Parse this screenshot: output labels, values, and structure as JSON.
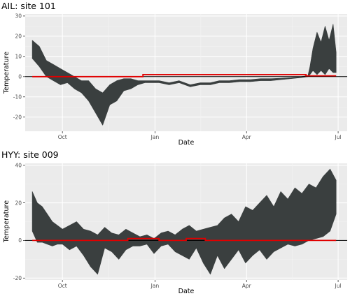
{
  "colors": {
    "panel_bg": "#ebebeb",
    "grid_major": "#ffffff",
    "grid_minor": "#f3f3f3",
    "band": "#3a3f3f",
    "threshold": "#e00000",
    "zero_line": "#000000"
  },
  "chart_data": [
    {
      "type": "area",
      "title": "AIL: site 101",
      "xlabel": "Date",
      "ylabel": "Temperature",
      "x_ticks": [
        "Oct",
        "Jan",
        "Apr",
        "Jul"
      ],
      "y_ticks": [
        -20,
        -10,
        0,
        10,
        20,
        30
      ],
      "xlim": [
        "2019-08-25",
        "2020-07-10"
      ],
      "ylim": [
        -27,
        31
      ],
      "grid": true,
      "reference_line_y": 0,
      "band": {
        "x": [
          "2019-09-01",
          "2019-09-08",
          "2019-09-15",
          "2019-09-22",
          "2019-09-29",
          "2019-10-06",
          "2019-10-13",
          "2019-10-20",
          "2019-10-27",
          "2019-11-03",
          "2019-11-10",
          "2019-11-17",
          "2019-11-24",
          "2019-12-01",
          "2019-12-08",
          "2019-12-15",
          "2019-12-22",
          "2019-12-29",
          "2020-01-05",
          "2020-01-15",
          "2020-01-25",
          "2020-02-05",
          "2020-02-15",
          "2020-02-25",
          "2020-03-05",
          "2020-03-15",
          "2020-03-25",
          "2020-04-05",
          "2020-04-15",
          "2020-04-25",
          "2020-05-05",
          "2020-05-15",
          "2020-05-25",
          "2020-06-01",
          "2020-06-03",
          "2020-06-06",
          "2020-06-10",
          "2020-06-14",
          "2020-06-18",
          "2020-06-22",
          "2020-06-26",
          "2020-06-29"
        ],
        "low": [
          9,
          5,
          0,
          -2,
          -4,
          -3,
          -6,
          -8,
          -12,
          -18,
          -24,
          -14,
          -12,
          -7,
          -6,
          -4,
          -3,
          -3,
          -3,
          -4,
          -3,
          -5,
          -4,
          -4,
          -3,
          -3,
          -2.5,
          -2.5,
          -2,
          -2,
          -1.5,
          -1,
          -0.5,
          0,
          1,
          3,
          1,
          3,
          1,
          4,
          2,
          2
        ],
        "high": [
          18,
          15,
          8,
          6,
          4,
          2,
          0,
          -2,
          -2,
          -6,
          -8,
          -4,
          -2,
          -1,
          -1,
          -2,
          -2,
          -2,
          -2,
          -3,
          -2,
          -4,
          -3,
          -3,
          -2,
          -2,
          -1.5,
          -1.5,
          -1,
          -1,
          -0.8,
          -0.5,
          0,
          0.5,
          5,
          14,
          22,
          17,
          25,
          18,
          26,
          12
        ]
      },
      "threshold": {
        "x": [
          "2019-09-01",
          "2019-12-20",
          "2019-12-20",
          "2020-05-30",
          "2020-05-30",
          "2020-06-29"
        ],
        "y": [
          0,
          0,
          1,
          1,
          0.4,
          0.4
        ]
      }
    },
    {
      "type": "area",
      "title": "HYY: site 009",
      "xlabel": "Date",
      "ylabel": "Temperature",
      "x_ticks": [
        "Oct",
        "Jan",
        "Apr",
        "Jul"
      ],
      "y_ticks": [
        -20,
        0,
        20,
        40
      ],
      "xlim": [
        "2019-08-25",
        "2020-07-10"
      ],
      "ylim": [
        -21,
        41
      ],
      "grid": true,
      "reference_line_y": 0,
      "band": {
        "x": [
          "2019-09-01",
          "2019-09-06",
          "2019-09-11",
          "2019-09-16",
          "2019-09-21",
          "2019-09-26",
          "2019-10-01",
          "2019-10-08",
          "2019-10-15",
          "2019-10-22",
          "2019-10-29",
          "2019-11-05",
          "2019-11-12",
          "2019-11-19",
          "2019-11-26",
          "2019-12-03",
          "2019-12-10",
          "2019-12-17",
          "2019-12-24",
          "2019-12-31",
          "2020-01-07",
          "2020-01-14",
          "2020-01-21",
          "2020-01-28",
          "2020-02-04",
          "2020-02-11",
          "2020-02-18",
          "2020-02-25",
          "2020-03-03",
          "2020-03-10",
          "2020-03-17",
          "2020-03-24",
          "2020-03-31",
          "2020-04-07",
          "2020-04-14",
          "2020-04-21",
          "2020-04-28",
          "2020-05-05",
          "2020-05-12",
          "2020-05-19",
          "2020-05-26",
          "2020-06-02",
          "2020-06-09",
          "2020-06-16",
          "2020-06-23",
          "2020-06-29"
        ],
        "low": [
          5,
          -1,
          -1,
          -2,
          -3,
          -2,
          -2,
          -5,
          -3,
          -8,
          -14,
          -18,
          -4,
          -6,
          -10,
          -5,
          -3,
          -3,
          -2,
          -7,
          -3,
          -2,
          -6,
          -8,
          -10,
          -4,
          -12,
          -18,
          -8,
          -15,
          -10,
          -5,
          -12,
          -8,
          -5,
          -10,
          -6,
          -4,
          -2,
          -3,
          -2,
          0,
          1,
          2,
          5,
          14
        ],
        "high": [
          26,
          20,
          18,
          14,
          10,
          8,
          6,
          8,
          10,
          6,
          5,
          3,
          7,
          4,
          3,
          6,
          4,
          2,
          3,
          1,
          4,
          5,
          3,
          6,
          8,
          5,
          6,
          7,
          8,
          12,
          14,
          10,
          18,
          16,
          20,
          24,
          18,
          26,
          22,
          28,
          25,
          30,
          28,
          34,
          38,
          32
        ]
      },
      "threshold": {
        "x": [
          "2019-09-01",
          "2019-12-05",
          "2019-12-05",
          "2020-01-05",
          "2020-01-05",
          "2020-02-01",
          "2020-02-01",
          "2020-02-20",
          "2020-02-20",
          "2020-06-29"
        ],
        "y": [
          0,
          0,
          1,
          1,
          0,
          0,
          1,
          1,
          0,
          0
        ]
      }
    }
  ]
}
